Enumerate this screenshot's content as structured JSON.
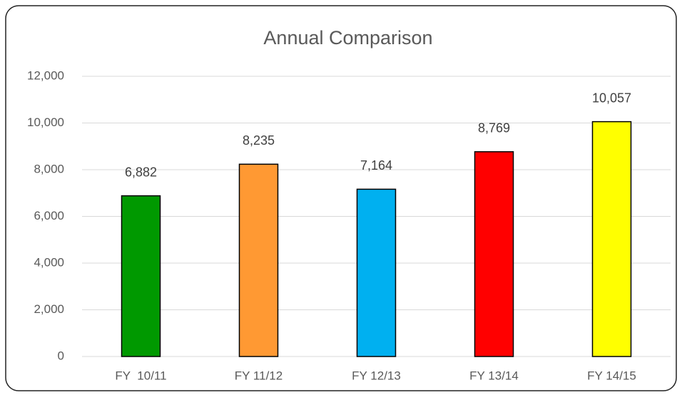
{
  "chart_data": {
    "type": "bar",
    "title": "Annual Comparison",
    "categories": [
      "FY  10/11",
      "FY 11/12",
      "FY 12/13",
      "FY 13/14",
      "FY 14/15"
    ],
    "values": [
      6882,
      8235,
      7164,
      8769,
      10057
    ],
    "value_labels": [
      "6,882",
      "8,235",
      "7,164",
      "8,769",
      "10,057"
    ],
    "colors": [
      "#009900",
      "#ff9933",
      "#00b0f0",
      "#ff0000",
      "#ffff00"
    ],
    "ylim": [
      0,
      12000
    ],
    "yticks": [
      0,
      {
        "value": 2000,
        "label": "2,000"
      },
      {
        "value": 4000,
        "label": "4,000"
      },
      {
        "value": 6000,
        "label": "6,000"
      },
      {
        "value": 8000,
        "label": "8,000"
      },
      {
        "value": 10000,
        "label": "10,000"
      },
      {
        "value": 12000,
        "label": "12,000"
      }
    ],
    "grid": true
  }
}
